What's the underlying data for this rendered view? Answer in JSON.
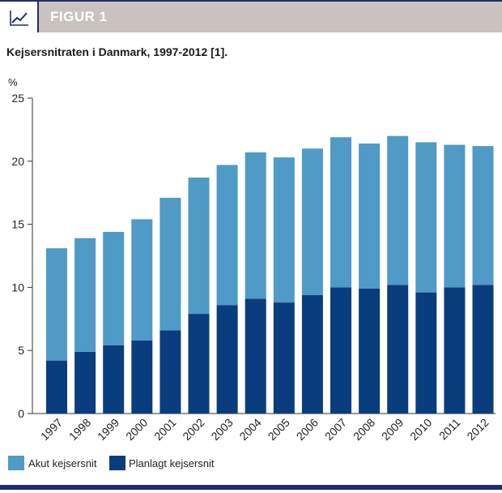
{
  "header": {
    "title": "FIGUR 1",
    "icon": "line-chart-icon"
  },
  "subtitle": "Kejsersnitraten i Danmark, 1997-2012 [1].",
  "colors": {
    "akut": "#4f9ac6",
    "planlagt": "#0a3d7d",
    "header_bg": "#c9c2bf",
    "rule": "#1f2d6b"
  },
  "chart_data": {
    "type": "bar",
    "stacked": true,
    "title": "Kejsersnitraten i Danmark, 1997-2012 [1].",
    "xlabel": "",
    "ylabel": "%",
    "ylim": [
      0,
      25
    ],
    "yticks": [
      0,
      5,
      10,
      15,
      20,
      25
    ],
    "categories": [
      "1997",
      "1998",
      "1999",
      "2000",
      "2001",
      "2002",
      "2003",
      "2004",
      "2005",
      "2006",
      "2007",
      "2008",
      "2009",
      "2010",
      "2011",
      "2012"
    ],
    "series": [
      {
        "name": "Planlagt kejsersnit",
        "color": "#0a3d7d",
        "values": [
          4.2,
          4.9,
          5.4,
          5.8,
          6.6,
          7.9,
          8.6,
          9.1,
          8.8,
          9.4,
          10.0,
          9.9,
          10.2,
          9.6,
          10.0,
          10.2
        ]
      },
      {
        "name": "Akut kejsersnit",
        "color": "#4f9ac6",
        "values": [
          8.9,
          9.0,
          9.0,
          9.6,
          10.5,
          10.8,
          11.1,
          11.6,
          11.5,
          11.6,
          11.9,
          11.5,
          11.8,
          11.9,
          11.3,
          11.0
        ]
      }
    ],
    "legend": [
      {
        "label": "Akut kejsersnit",
        "color": "#4f9ac6"
      },
      {
        "label": "Planlagt kejsersnit",
        "color": "#0a3d7d"
      }
    ],
    "legend_position": "bottom-left"
  }
}
